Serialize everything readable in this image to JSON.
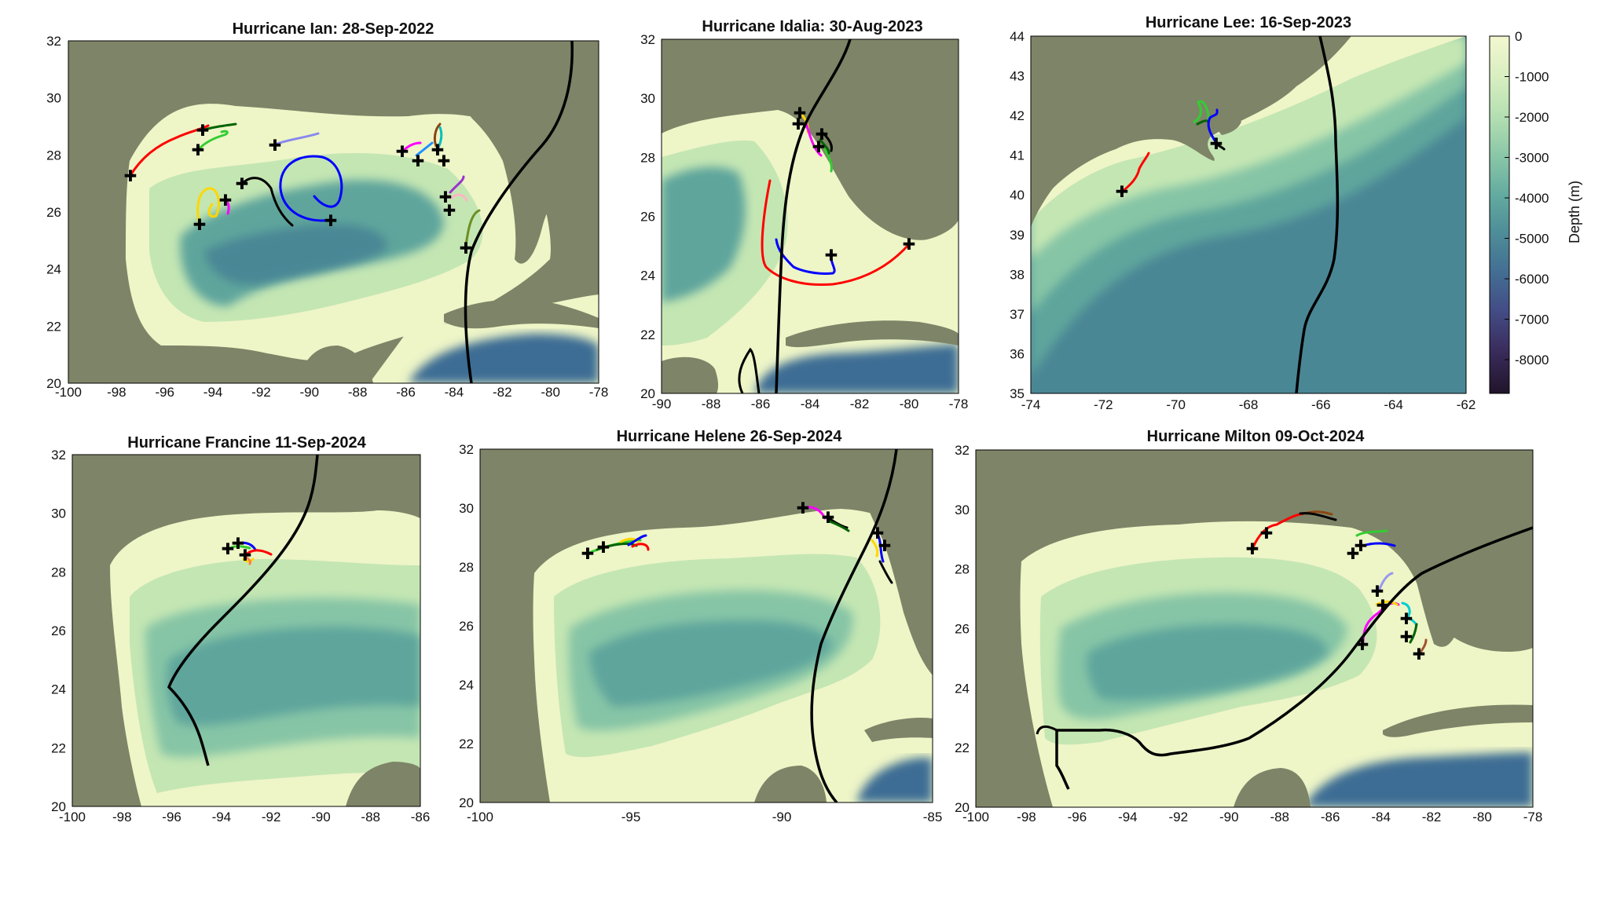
{
  "colors": {
    "land": "#7e8467",
    "shelf": "#eef5c7",
    "slope": "#c4e6b3",
    "mid": "#86c5a6",
    "deep": "#5fa59c",
    "abyss": "#4a8795",
    "trench": "#3e6d94",
    "track": "#000000",
    "release": "#000000"
  },
  "colorbar": {
    "label": "Depth (m)",
    "ticks": [
      "0",
      "-1000",
      "-2000",
      "-3000",
      "-4000",
      "-5000",
      "-6000",
      "-7000",
      "-8000"
    ],
    "stops": [
      "#f3f7d0",
      "#d9efc0",
      "#b6e0b2",
      "#8cc8a8",
      "#64aca0",
      "#4e8d98",
      "#436e93",
      "#434c85",
      "#3a2c5c",
      "#20142a"
    ]
  },
  "panels": [
    {
      "id": "ian",
      "title": "Hurricane Ian: 28-Sep-2022",
      "x_ticks": [
        "-100",
        "-98",
        "-96",
        "-94",
        "-92",
        "-90",
        "-88",
        "-86",
        "-84",
        "-82",
        "-80",
        "-78"
      ],
      "y_ticks": [
        "20",
        "22",
        "24",
        "26",
        "28",
        "30",
        "32"
      ]
    },
    {
      "id": "idalia",
      "title": "Hurricane Idalia: 30-Aug-2023",
      "x_ticks": [
        "-90",
        "-88",
        "-86",
        "-84",
        "-82",
        "-80",
        "-78"
      ],
      "y_ticks": [
        "20",
        "22",
        "24",
        "26",
        "28",
        "30",
        "32"
      ]
    },
    {
      "id": "lee",
      "title": "Hurricane Lee: 16-Sep-2023",
      "x_ticks": [
        "-74",
        "-72",
        "-70",
        "-68",
        "-66",
        "-64",
        "-62"
      ],
      "y_ticks": [
        "35",
        "36",
        "37",
        "38",
        "39",
        "40",
        "41",
        "42",
        "43",
        "44"
      ]
    },
    {
      "id": "francine",
      "title": "Hurricane Francine 11-Sep-2024",
      "x_ticks": [
        "-100",
        "-98",
        "-96",
        "-94",
        "-92",
        "-90",
        "-88",
        "-86"
      ],
      "y_ticks": [
        "20",
        "22",
        "24",
        "26",
        "28",
        "30",
        "32"
      ]
    },
    {
      "id": "helene",
      "title": "Hurricane Helene 26-Sep-2024",
      "x_ticks": [
        "-100",
        "-95",
        "-90",
        "-85"
      ],
      "y_ticks": [
        "20",
        "22",
        "24",
        "26",
        "28",
        "30",
        "32"
      ]
    },
    {
      "id": "milton",
      "title": "Hurricane Milton 09-Oct-2024",
      "x_ticks": [
        "-100",
        "-98",
        "-96",
        "-94",
        "-92",
        "-90",
        "-88",
        "-86",
        "-84",
        "-82",
        "-80",
        "-78"
      ],
      "y_ticks": [
        "20",
        "22",
        "24",
        "26",
        "28",
        "30",
        "32"
      ]
    }
  ]
}
